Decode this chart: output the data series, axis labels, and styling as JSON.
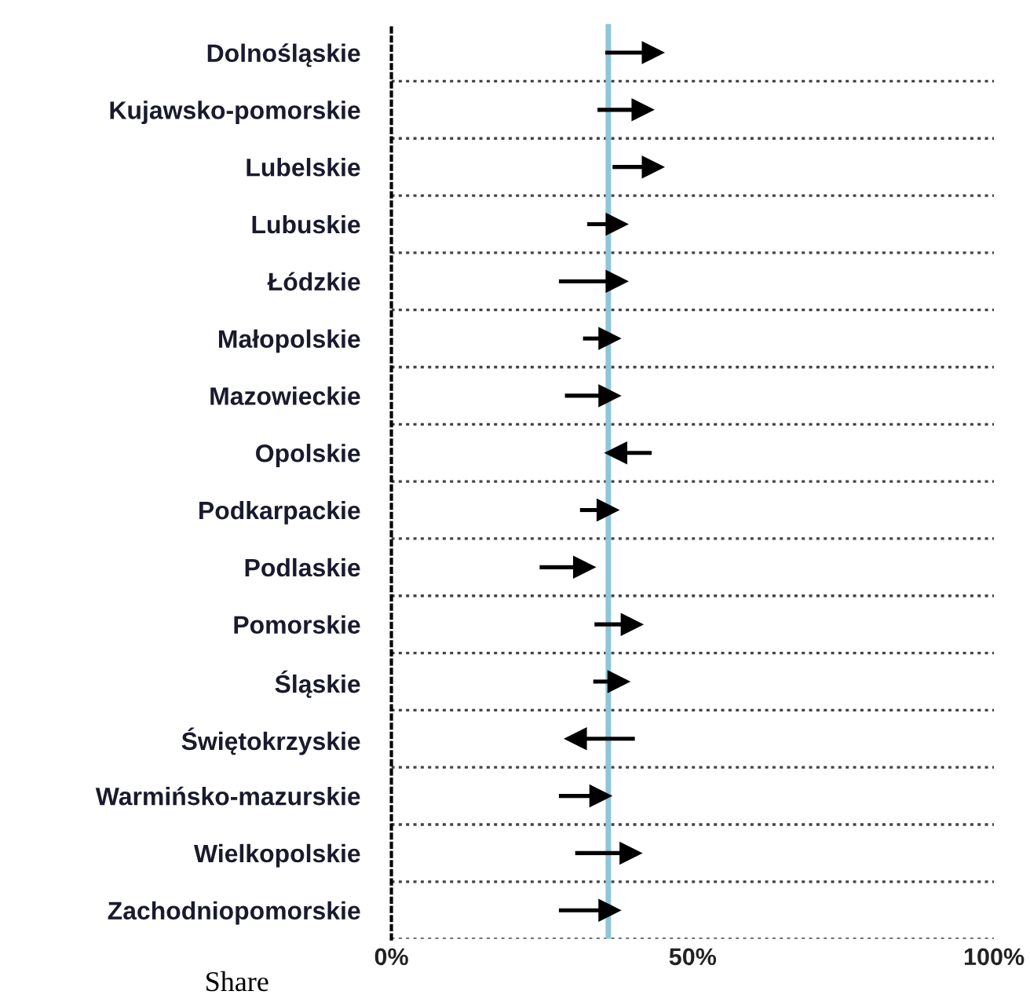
{
  "chart_data": {
    "type": "bar",
    "orientation": "horizontal",
    "xlabel": "Share",
    "categories": [
      "Dolnośląskie",
      "Kujawsko-pomorskie",
      "Lubelskie",
      "Lubuskie",
      "Łódzkie",
      "Małopolskie",
      "Mazowieckie",
      "Opolskie",
      "Podkarpackie",
      "Podlaskie",
      "Pomorskie",
      "Śląskie",
      "Świętokrzyskie",
      "Warmińsko-mazurskie",
      "Wielkopolskie",
      "Zachodniopomorskie"
    ],
    "base": [
      35.5,
      34.2,
      36.7,
      32.5,
      27.8,
      31.8,
      28.8,
      43.2,
      31.3,
      24.6,
      33.7,
      33.5,
      40.4,
      27.8,
      30.5,
      27.8
    ],
    "values": [
      6.2,
      5.8,
      5.0,
      3.2,
      7.9,
      2.7,
      5.7,
      -4.2,
      2.9,
      5.7,
      4.5,
      2.5,
      -8.1,
      5.2,
      7.5,
      6.7
    ],
    "color": "#000000",
    "xlim": [
      0,
      100
    ],
    "xticks": [
      {
        "value": 0,
        "label": "0%"
      },
      {
        "value": 50,
        "label": "50%"
      },
      {
        "value": 100,
        "label": "100%"
      }
    ],
    "ref_lines": [
      {
        "axis": "x",
        "value": 36,
        "color": "#8ec5d9"
      }
    ],
    "grid": "y"
  }
}
